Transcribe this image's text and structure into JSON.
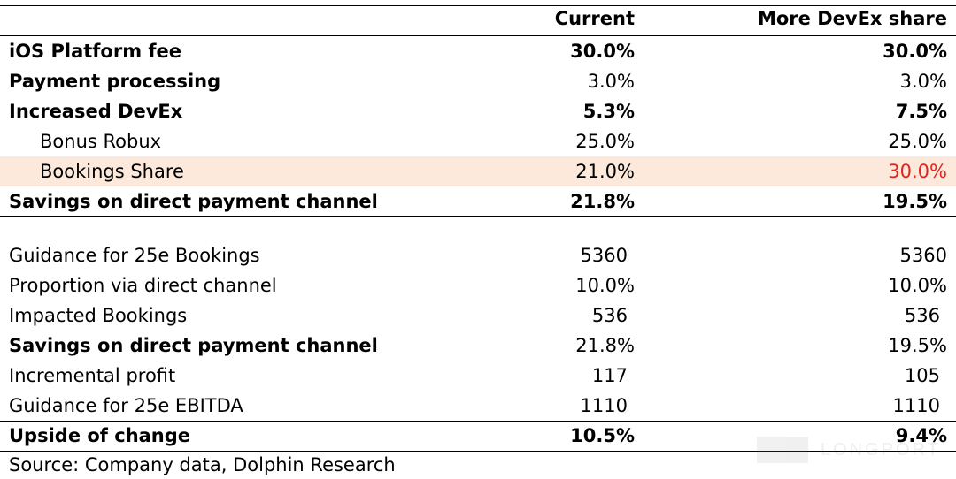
{
  "columns": {
    "current": "Current",
    "more": "More DevEx share"
  },
  "section1": [
    {
      "label": "iOS Platform fee",
      "current": "30.0%",
      "more": "30.0%",
      "bold": true,
      "indent": false
    },
    {
      "label": "Payment processing",
      "current": "3.0%",
      "more": "3.0%",
      "bold": "label",
      "indent": false
    },
    {
      "label": "Increased DevEx",
      "current": "5.3%",
      "more": "7.5%",
      "bold": true,
      "indent": false
    },
    {
      "label": "Bonus Robux",
      "current": "25.0%",
      "more": "25.0%",
      "bold": false,
      "indent": true
    },
    {
      "label": "Bookings Share",
      "current": "21.0%",
      "more": "30.0%",
      "bold": false,
      "indent": true,
      "highlight": true,
      "more_color": "#e1251b"
    },
    {
      "label": "Savings on direct payment channel",
      "current": "21.8%",
      "more": "19.5%",
      "bold": true,
      "indent": false
    }
  ],
  "section2": [
    {
      "label": "Guidance for 25e Bookings",
      "current": "5360",
      "more": "5360",
      "bold": false
    },
    {
      "label": "Proportion via direct channel",
      "current": "10.0%",
      "more": "10.0%",
      "bold": false
    },
    {
      "label": "Impacted Bookings",
      "current": "536",
      "more": "536",
      "bold": false
    },
    {
      "label": "Savings on direct payment channel",
      "current": "21.8%",
      "more": "19.5%",
      "bold": "label"
    },
    {
      "label": "Incremental profit",
      "current": "117",
      "more": "105",
      "bold": false
    },
    {
      "label": "Guidance for 25e EBITDA",
      "current": "1110",
      "more": "1110",
      "bold": false
    },
    {
      "label": "Upside of change",
      "current": "10.5%",
      "more": "9.4%",
      "bold": true
    }
  ],
  "source": "Source: Company data, Dolphin Research",
  "watermark": "LONGPORT"
}
